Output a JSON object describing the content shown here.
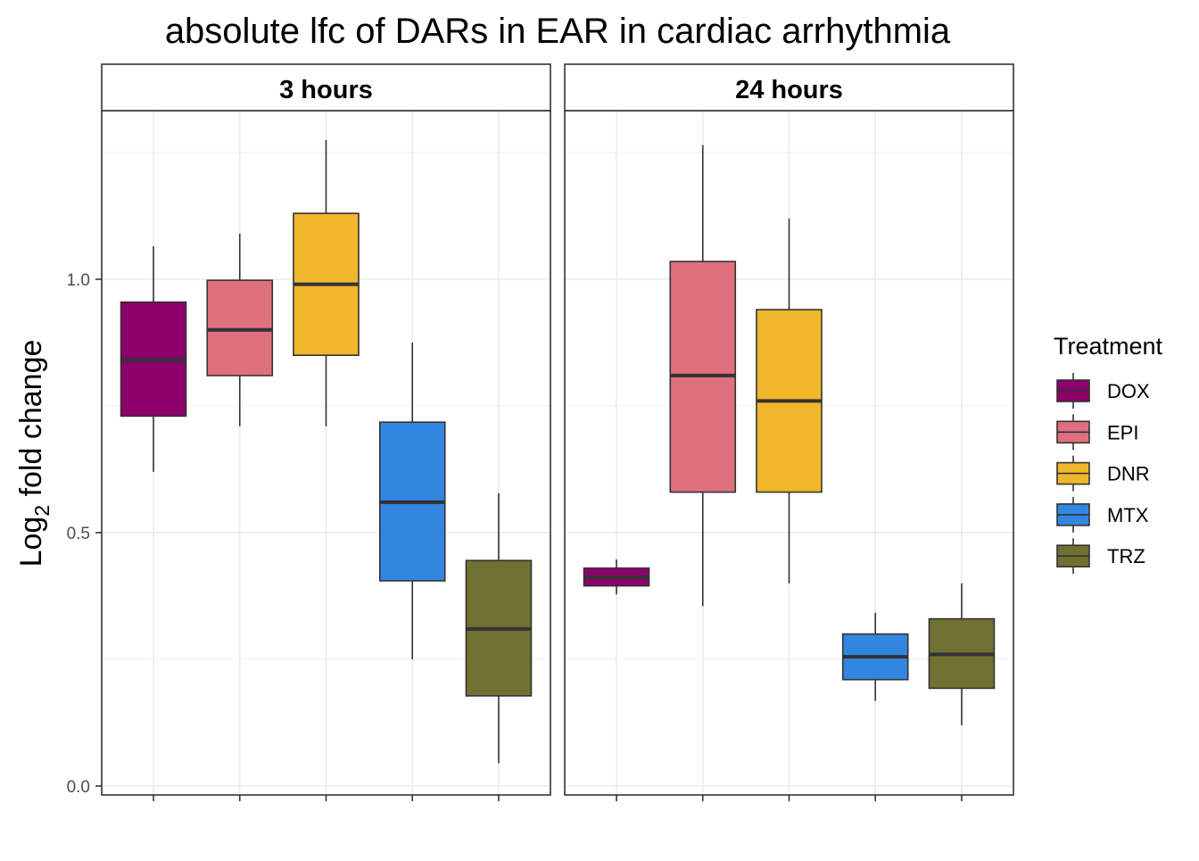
{
  "chart_data": {
    "type": "box",
    "title": "absolute lfc of DARs in EAR in cardiac arrhythmia",
    "xlabel": "",
    "ylabel": {
      "base": "Log",
      "subscript": "2",
      "rest": " fold change"
    },
    "ylim": [
      -0.02,
      1.32
    ],
    "y_ticks": [
      {
        "value": 0.0,
        "label": "0.0"
      },
      {
        "value": 0.5,
        "label": "0.5"
      },
      {
        "value": 1.0,
        "label": "1.0"
      }
    ],
    "grid": true,
    "legend": {
      "title": "Treatment",
      "placement": "right",
      "items": [
        {
          "name": "DOX",
          "color": "#8B006B"
        },
        {
          "name": "EPI",
          "color": "#DF707E"
        },
        {
          "name": "DNR",
          "color": "#F1B72B"
        },
        {
          "name": "MTX",
          "color": "#3386E0"
        },
        {
          "name": "TRZ",
          "color": "#707031"
        }
      ]
    },
    "panels": [
      {
        "label": "3 hours",
        "boxes": [
          {
            "treatment": "DOX",
            "min": 0.62,
            "q1": 0.73,
            "median": 0.84,
            "q3": 0.955,
            "max": 1.065
          },
          {
            "treatment": "EPI",
            "min": 0.71,
            "q1": 0.81,
            "median": 0.9,
            "q3": 0.998,
            "max": 1.09
          },
          {
            "treatment": "DNR",
            "min": 0.71,
            "q1": 0.85,
            "median": 0.99,
            "q3": 1.13,
            "max": 1.275
          },
          {
            "treatment": "MTX",
            "min": 0.25,
            "q1": 0.405,
            "median": 0.56,
            "q3": 0.718,
            "max": 0.875
          },
          {
            "treatment": "TRZ",
            "min": 0.045,
            "q1": 0.178,
            "median": 0.31,
            "q3": 0.445,
            "max": 0.578
          }
        ]
      },
      {
        "label": "24 hours",
        "boxes": [
          {
            "treatment": "DOX",
            "min": 0.378,
            "q1": 0.395,
            "median": 0.412,
            "q3": 0.43,
            "max": 0.447
          },
          {
            "treatment": "EPI",
            "min": 0.355,
            "q1": 0.58,
            "median": 0.81,
            "q3": 1.035,
            "max": 1.265
          },
          {
            "treatment": "DNR",
            "min": 0.4,
            "q1": 0.58,
            "median": 0.76,
            "q3": 0.94,
            "max": 1.12
          },
          {
            "treatment": "MTX",
            "min": 0.168,
            "q1": 0.21,
            "median": 0.255,
            "q3": 0.3,
            "max": 0.342
          },
          {
            "treatment": "TRZ",
            "min": 0.12,
            "q1": 0.193,
            "median": 0.26,
            "q3": 0.33,
            "max": 0.4
          }
        ]
      }
    ]
  }
}
